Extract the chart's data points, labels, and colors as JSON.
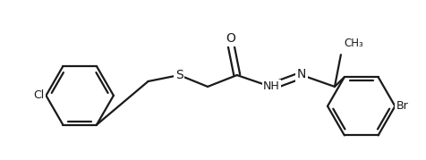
{
  "bg_color": "#ffffff",
  "line_color": "#1a1a1a",
  "line_width": 1.6,
  "figsize": [
    4.77,
    1.79
  ],
  "dpi": 100,
  "xlim": [
    0,
    477
  ],
  "ylim": [
    0,
    179
  ]
}
